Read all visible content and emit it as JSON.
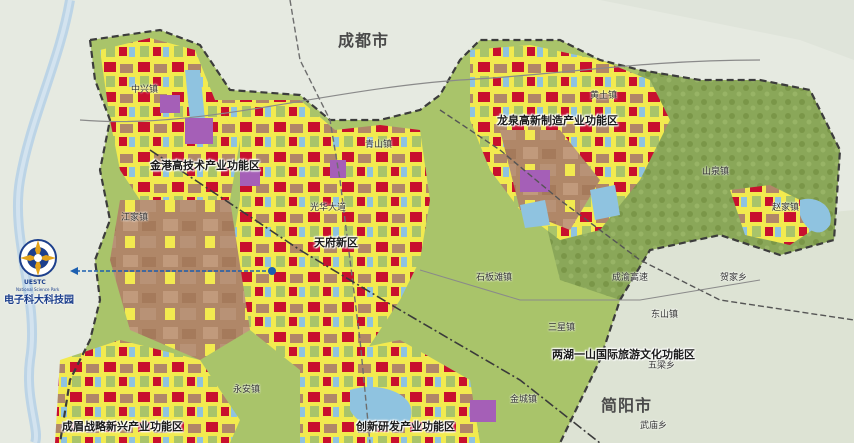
{
  "cities": {
    "chengdu": "成都市",
    "jianyang": "简阳市"
  },
  "zones": {
    "jingang": "金港高技术产业功能区",
    "longquan": "龙泉高新制造产业功能区",
    "tianfu": "天府新区",
    "lianhu": "两湖一山国际旅游文化功能区",
    "chengmei": "成眉战略新兴产业功能区",
    "chuangxin": "创新研发产业功能区"
  },
  "towns": {
    "shanquan": "山泉镇",
    "yong_an": "永安镇",
    "shibantan": "石板滩镇",
    "jincheng": "金城镇",
    "jiangjia": "江家镇",
    "dongshan": "东山镇",
    "wuyi": "五梁乡",
    "wuhuang": "武庙乡",
    "huangtu": "黄土镇",
    "guanghua": "光华大道",
    "qingshan": "青山镇",
    "sanxing": "三星镇",
    "hebei": "贺家乡",
    "chengpo": "成渝高速",
    "zhongxing": "中兴镇",
    "zhaojia": "赵家镇"
  },
  "landmark": {
    "logo_abbr": "UESTC",
    "logo_sub": "National Science Park",
    "label": "电子科大科技园"
  },
  "colors": {
    "land_green": "#a9c46a",
    "urban_yellow": "#f2ea4f",
    "industrial_brown": "#b08768",
    "commercial_red": "#c8102e",
    "education_purple": "#a55fb7",
    "water_blue": "#8fc3e0",
    "hill_green": "#7d9a4f",
    "outside": "#e9ece4",
    "boundary": "#3c3c3c",
    "marker": "#1c5fb0"
  }
}
